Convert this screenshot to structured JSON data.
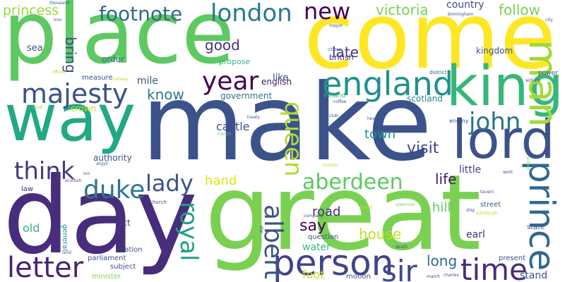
{
  "cloud": {
    "background": "#ffffff",
    "words": [
      {
        "text": "make",
        "color": "#3b528b"
      },
      {
        "text": "great",
        "color": "#7ad151"
      },
      {
        "text": "day",
        "color": "#472d7b"
      },
      {
        "text": "come",
        "color": "#fde725"
      },
      {
        "text": "place",
        "color": "#5ec962"
      },
      {
        "text": "way",
        "color": "#22a884"
      },
      {
        "text": "king",
        "color": "#35b779"
      },
      {
        "text": "lord",
        "color": "#3b528b"
      },
      {
        "text": "prince",
        "color": "#31688e"
      },
      {
        "text": "man",
        "color": "#a0da39"
      },
      {
        "text": "england",
        "color": "#21918c"
      },
      {
        "text": "person",
        "color": "#414487"
      },
      {
        "text": "majesty",
        "color": "#3b528b"
      },
      {
        "text": "time",
        "color": "#472d7b"
      },
      {
        "text": "year",
        "color": "#440154"
      },
      {
        "text": "sir",
        "color": "#3e4a89"
      },
      {
        "text": "letter",
        "color": "#482475"
      },
      {
        "text": "queen",
        "color": "#addc30"
      },
      {
        "text": "albert",
        "color": "#3b528b"
      },
      {
        "text": "royal",
        "color": "#1f9e89"
      },
      {
        "text": "london",
        "color": "#2a788e"
      },
      {
        "text": "footnote",
        "color": "#31688e"
      },
      {
        "text": "john",
        "color": "#2c728e"
      },
      {
        "text": "duke",
        "color": "#2a788e"
      },
      {
        "text": "think",
        "color": "#443983"
      },
      {
        "text": "aberdeen",
        "color": "#5ec962"
      },
      {
        "text": "lady",
        "color": "#3b528b"
      },
      {
        "text": "new",
        "color": "#440154"
      },
      {
        "text": "princess",
        "color": "#9bd93c"
      },
      {
        "text": "victoria",
        "color": "#7ad151"
      },
      {
        "text": "follow",
        "color": "#7ad151"
      },
      {
        "text": "country",
        "color": "#3e4a89"
      },
      {
        "text": "late",
        "color": "#453781"
      },
      {
        "text": "good",
        "color": "#46337e"
      },
      {
        "text": "bring",
        "color": "#3e4a89"
      },
      {
        "text": "know",
        "color": "#2a788e"
      },
      {
        "text": "visit",
        "color": "#414487"
      },
      {
        "text": "life",
        "color": "#481a6c"
      },
      {
        "text": "castle",
        "color": "#3b528b"
      },
      {
        "text": "town",
        "color": "#21918c"
      },
      {
        "text": "hand",
        "color": "#dde318"
      },
      {
        "text": "say",
        "color": "#440154"
      },
      {
        "text": "house",
        "color": "#c2df23"
      },
      {
        "text": "long",
        "color": "#306a8e"
      },
      {
        "text": "hill",
        "color": "#5ec962"
      },
      {
        "text": "road",
        "color": "#472d7b"
      },
      {
        "text": "foot",
        "color": "#bddf26"
      },
      {
        "text": "old",
        "color": "#35b779"
      },
      {
        "text": "water",
        "color": "#35b779"
      },
      {
        "text": "stand",
        "color": "#3b528b"
      },
      {
        "text": "little",
        "color": "#433e85"
      },
      {
        "text": "earl",
        "color": "#472d7b"
      },
      {
        "text": "act",
        "color": "#443983"
      },
      {
        "text": "english",
        "color": "#471164"
      },
      {
        "text": "like",
        "color": "#3b528b"
      },
      {
        "text": "scotland",
        "color": "#26828e"
      },
      {
        "text": "sea",
        "color": "#3b528b"
      },
      {
        "text": "mile",
        "color": "#3b528b"
      },
      {
        "text": "order",
        "color": "#2c728e"
      },
      {
        "text": "kingdom",
        "color": "#3b528b"
      },
      {
        "text": "british",
        "color": "#46337e"
      },
      {
        "text": "government",
        "color": "#2a788e"
      },
      {
        "text": "propose",
        "color": "#35b779"
      },
      {
        "text": "measure",
        "color": "#3b528b"
      },
      {
        "text": "crown",
        "color": "#c2df23"
      },
      {
        "text": "authority",
        "color": "#3b528b"
      },
      {
        "text": "law",
        "color": "#482475"
      },
      {
        "text": "street",
        "color": "#3b528b"
      },
      {
        "text": "nation",
        "color": "#3b528b"
      },
      {
        "text": "general",
        "color": "#21918c"
      },
      {
        "text": "question",
        "color": "#3b528b"
      },
      {
        "text": "parliament",
        "color": "#3b528b"
      },
      {
        "text": "subject",
        "color": "#3b528b"
      },
      {
        "text": "minister",
        "color": "#7ad151"
      },
      {
        "text": "motion",
        "color": "#3b528b"
      },
      {
        "text": "present",
        "color": "#3b528b"
      },
      {
        "text": "state",
        "color": "#3b528b"
      },
      {
        "text": "power",
        "color": "#3b528b"
      },
      {
        "text": "ireland",
        "color": "#35b779"
      },
      {
        "text": "coffee",
        "color": "#3b528b"
      },
      {
        "text": "enemy",
        "color": "#3b528b"
      },
      {
        "text": "district",
        "color": "#3b528b"
      },
      {
        "text": "church",
        "color": "#3b528b"
      },
      {
        "text": "company",
        "color": "#3b528b"
      },
      {
        "text": "iron",
        "color": "#3b528b"
      },
      {
        "text": "local",
        "color": "#7ad151"
      },
      {
        "text": "officer",
        "color": "#b5de2b"
      },
      {
        "text": "railway",
        "color": "#b5de2b"
      },
      {
        "text": "forest",
        "color": "#b5de2b"
      },
      {
        "text": "alderman",
        "color": "#7ad151"
      },
      {
        "text": "death",
        "color": "#3b528b"
      },
      {
        "text": "march",
        "color": "#3b528b"
      },
      {
        "text": "charles",
        "color": "#3b528b"
      },
      {
        "text": "tavern",
        "color": "#3b528b"
      },
      {
        "text": "school",
        "color": "#7ad151"
      },
      {
        "text": "work",
        "color": "#3b528b"
      },
      {
        "text": "club",
        "color": "#3b528b"
      },
      {
        "text": "head",
        "color": "#3b528b"
      },
      {
        "text": "citizen",
        "color": "#3b528b"
      },
      {
        "text": "mayor",
        "color": "#3b528b"
      },
      {
        "text": "birmingham",
        "color": "#3b528b"
      },
      {
        "text": "city",
        "color": "#3b528b"
      },
      {
        "text": "thousand",
        "color": "#3b528b"
      },
      {
        "text": "treaty",
        "color": "#3b528b"
      },
      {
        "text": "french",
        "color": "#7ad151"
      },
      {
        "text": "number",
        "color": "#b5de2b"
      },
      {
        "text": "inn",
        "color": "#3b528b"
      },
      {
        "text": "scottish",
        "color": "#3b528b"
      },
      {
        "text": "argyll",
        "color": "#3b528b"
      },
      {
        "text": "william",
        "color": "#3b528b"
      },
      {
        "text": "ship",
        "color": "#3b528b"
      },
      {
        "text": "edinburgh",
        "color": "#b5de2b"
      },
      {
        "text": "die",
        "color": "#3b528b"
      },
      {
        "text": "land",
        "color": "#3b528b"
      }
    ]
  }
}
